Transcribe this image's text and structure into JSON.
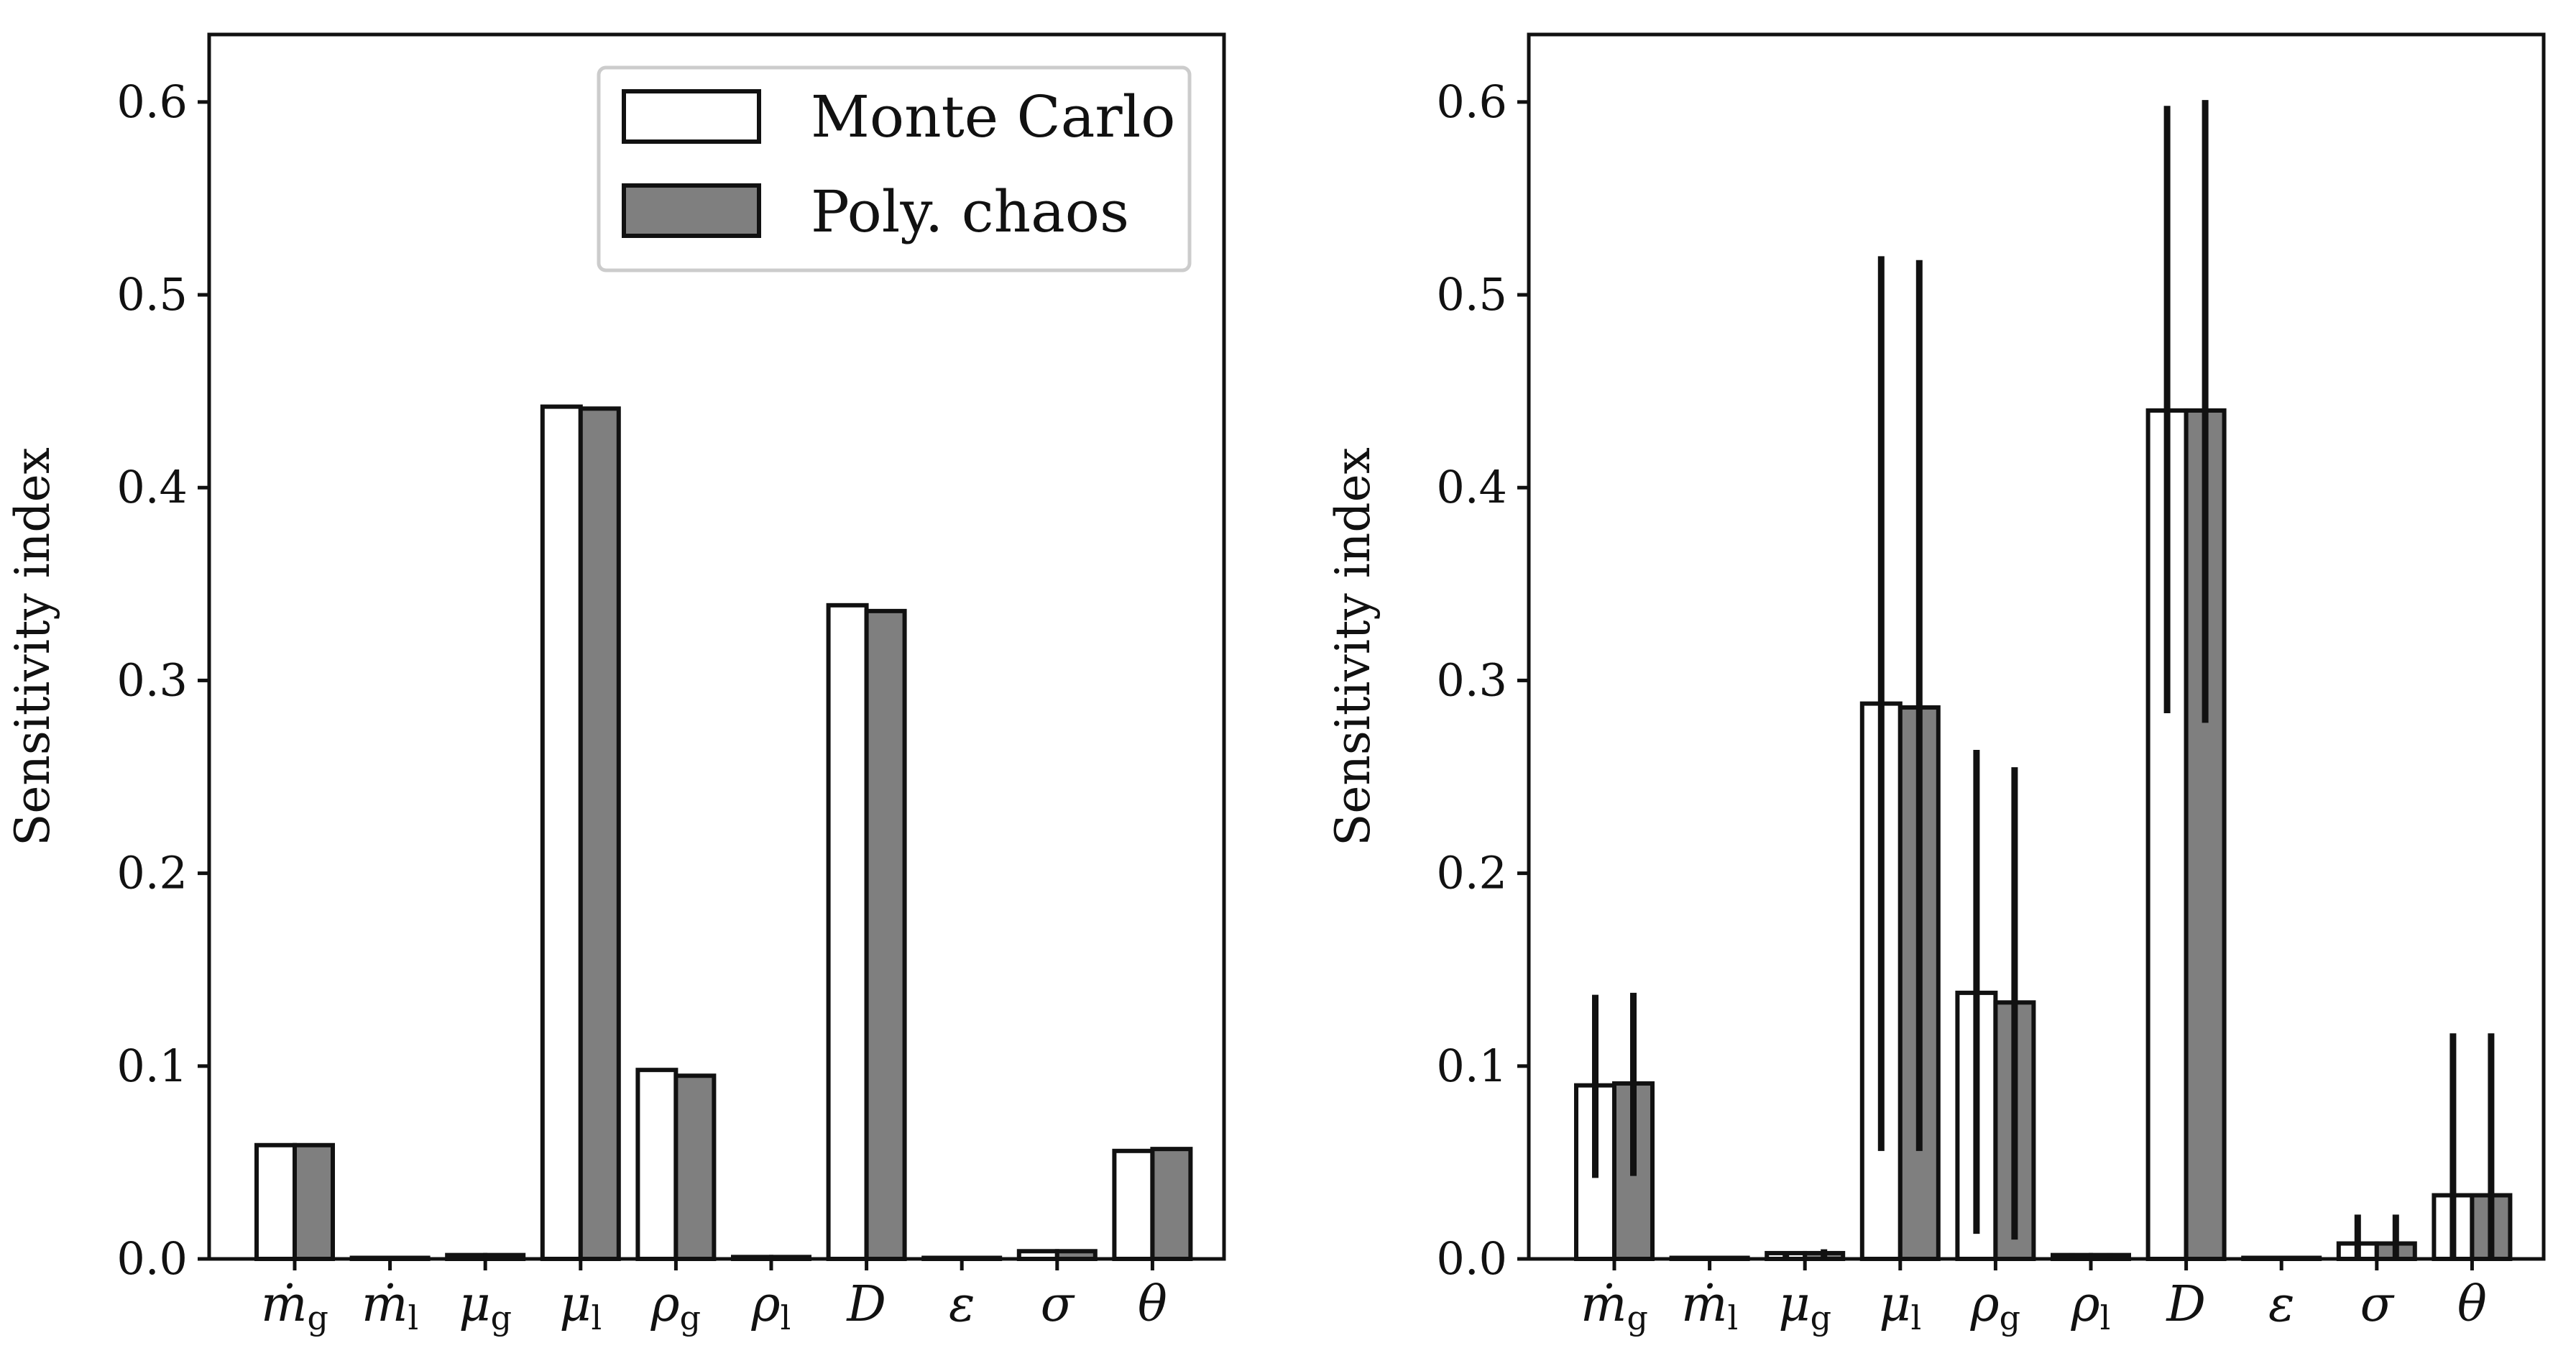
{
  "legend": {
    "entries": [
      {
        "label": "Monte Carlo",
        "color": "#ffffff"
      },
      {
        "label": "Poly. chaos",
        "color": "#7f7f7f"
      }
    ]
  },
  "chart_data": [
    {
      "type": "bar",
      "ylabel": "Sensitivity index",
      "ylim": [
        0,
        0.635
      ],
      "yticks": [
        "0.0",
        "0.1",
        "0.2",
        "0.3",
        "0.4",
        "0.5",
        "0.6"
      ],
      "ytick_values": [
        0,
        0.1,
        0.2,
        0.3,
        0.4,
        0.5,
        0.6
      ],
      "legend_position": "top-right",
      "categories": [
        {
          "main": "ṁ",
          "sub": "g"
        },
        {
          "main": "ṁ",
          "sub": "l"
        },
        {
          "main": "μ",
          "sub": "g"
        },
        {
          "main": "μ",
          "sub": "l"
        },
        {
          "main": "ρ",
          "sub": "g"
        },
        {
          "main": "ρ",
          "sub": "l"
        },
        {
          "main": "D",
          "sub": ""
        },
        {
          "main": "ε",
          "sub": ""
        },
        {
          "main": "σ",
          "sub": ""
        },
        {
          "main": "θ",
          "sub": ""
        }
      ],
      "series": [
        {
          "name": "Monte Carlo",
          "color": "#ffffff",
          "values": [
            0.059,
            0.0,
            0.002,
            0.442,
            0.098,
            0.001,
            0.339,
            0.0,
            0.004,
            0.056
          ]
        },
        {
          "name": "Poly. chaos",
          "color": "#7f7f7f",
          "values": [
            0.059,
            0.0,
            0.002,
            0.441,
            0.095,
            0.001,
            0.336,
            0.0,
            0.004,
            0.057
          ]
        }
      ]
    },
    {
      "type": "bar",
      "ylabel": "Sensitivity index",
      "ylim": [
        0,
        0.635
      ],
      "yticks": [
        "0.0",
        "0.1",
        "0.2",
        "0.3",
        "0.4",
        "0.5",
        "0.6"
      ],
      "ytick_values": [
        0,
        0.1,
        0.2,
        0.3,
        0.4,
        0.5,
        0.6
      ],
      "categories": [
        {
          "main": "ṁ",
          "sub": "g"
        },
        {
          "main": "ṁ",
          "sub": "l"
        },
        {
          "main": "μ",
          "sub": "g"
        },
        {
          "main": "μ",
          "sub": "l"
        },
        {
          "main": "ρ",
          "sub": "g"
        },
        {
          "main": "ρ",
          "sub": "l"
        },
        {
          "main": "D",
          "sub": ""
        },
        {
          "main": "ε",
          "sub": ""
        },
        {
          "main": "σ",
          "sub": ""
        },
        {
          "main": "θ",
          "sub": ""
        }
      ],
      "series": [
        {
          "name": "Monte Carlo",
          "color": "#ffffff",
          "values": [
            0.09,
            0.0,
            0.003,
            0.288,
            0.138,
            0.002,
            0.44,
            0.0,
            0.008,
            0.033
          ],
          "error_low": [
            0.042,
            0.0,
            0.001,
            0.056,
            0.013,
            0.001,
            0.283,
            0.0,
            0.0,
            0.0
          ],
          "error_high": [
            0.137,
            0.0,
            0.004,
            0.52,
            0.264,
            0.003,
            0.598,
            0.0,
            0.023,
            0.117
          ]
        },
        {
          "name": "Poly. chaos",
          "color": "#7f7f7f",
          "values": [
            0.091,
            0.0,
            0.003,
            0.286,
            0.133,
            0.002,
            0.44,
            0.0,
            0.008,
            0.033
          ],
          "error_low": [
            0.043,
            0.0,
            0.001,
            0.056,
            0.01,
            0.001,
            0.278,
            0.0,
            0.0,
            0.0
          ],
          "error_high": [
            0.138,
            0.0,
            0.005,
            0.518,
            0.255,
            0.003,
            0.601,
            0.0,
            0.023,
            0.117
          ]
        }
      ]
    }
  ]
}
